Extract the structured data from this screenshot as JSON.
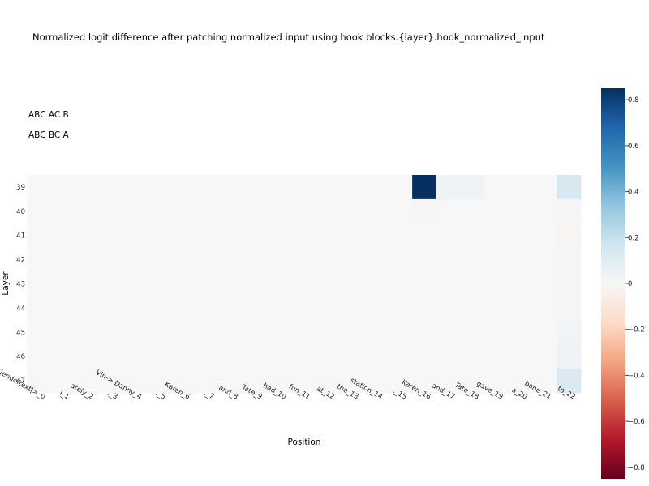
{
  "chart_data": {
    "type": "heatmap",
    "title": "Normalized logit difference after patching normalized input using hook blocks.{layer}.hook_normalized_input",
    "legend": [
      "ABC AC B",
      "ABC BC A"
    ],
    "xlabel": "Position",
    "ylabel": "Layer",
    "x_categories": [
      "<|endoftext|>_0",
      "I_1",
      "ately_2",
      ",_3",
      "Vin-> Danny_4",
      ",_5",
      "Karen_6",
      ",_7",
      "and_8",
      "Tate_9",
      "had_10",
      "fun_11",
      "at_12",
      "the_13",
      "station_14",
      "._15",
      "Karen_16",
      "and_17",
      "Tate_18",
      "gave_19",
      "a_20",
      "bone_21",
      "to_22"
    ],
    "y_categories": [
      "39",
      "40",
      "41",
      "42",
      "43",
      "44",
      "45",
      "46",
      "47"
    ],
    "values": [
      [
        0,
        0,
        0,
        0,
        0,
        0,
        0,
        0,
        0,
        0,
        0,
        0,
        0,
        0,
        0,
        0,
        0.85,
        0.04,
        0.04,
        0,
        0,
        0,
        0.14
      ],
      [
        0,
        0,
        0,
        0,
        0,
        0,
        0,
        0,
        0,
        0,
        0,
        0,
        0,
        0,
        0,
        0,
        0.005,
        0,
        0,
        0,
        0,
        0,
        0.005
      ],
      [
        0,
        0,
        0,
        0,
        0,
        0,
        0,
        0,
        0,
        0,
        0,
        0,
        0,
        0,
        0,
        0,
        0,
        0,
        0,
        0,
        0,
        0,
        -0.02
      ],
      [
        0,
        0,
        0,
        0,
        0,
        0,
        0,
        0,
        0,
        0,
        0,
        0,
        0,
        0,
        0,
        0,
        0,
        0,
        0,
        0,
        0,
        0,
        0.005
      ],
      [
        0,
        0,
        0,
        0,
        0,
        0,
        0,
        0,
        0,
        0,
        0,
        0,
        0,
        0,
        0,
        0,
        0,
        0,
        0,
        0,
        0,
        0,
        0.01
      ],
      [
        0,
        0,
        0,
        0,
        0,
        0,
        0,
        0,
        0,
        0,
        0,
        0,
        0,
        0,
        0,
        0,
        0,
        0,
        0,
        0,
        0,
        0,
        0.005
      ],
      [
        0,
        0,
        0,
        0,
        0,
        0,
        0,
        0,
        0,
        0,
        0,
        0,
        0,
        0,
        0,
        0,
        0,
        0,
        0,
        0,
        0,
        0,
        0.03
      ],
      [
        0,
        0,
        0,
        0,
        0,
        0,
        0,
        0,
        0,
        0,
        0,
        0,
        0,
        0,
        0,
        0,
        0,
        0,
        0,
        0,
        0,
        0,
        0.05
      ],
      [
        0,
        0,
        0,
        0,
        0,
        0,
        0,
        0,
        0,
        0,
        0,
        0,
        0,
        0,
        0,
        0,
        0,
        0,
        0,
        0,
        0,
        0,
        0.13
      ]
    ],
    "colorscale": {
      "name": "RdBu",
      "zmin": -0.85,
      "zmax": 0.85,
      "ticks": [
        0.8,
        0.6,
        0.4,
        0.2,
        0,
        -0.2,
        -0.4,
        -0.6,
        -0.8
      ],
      "tick_labels": [
        "0.8",
        "0.6",
        "0.4",
        "0.2",
        "0",
        "−0.2",
        "−0.4",
        "−0.6",
        "−0.8"
      ]
    },
    "grid": false,
    "colorbar_placement": "right"
  }
}
